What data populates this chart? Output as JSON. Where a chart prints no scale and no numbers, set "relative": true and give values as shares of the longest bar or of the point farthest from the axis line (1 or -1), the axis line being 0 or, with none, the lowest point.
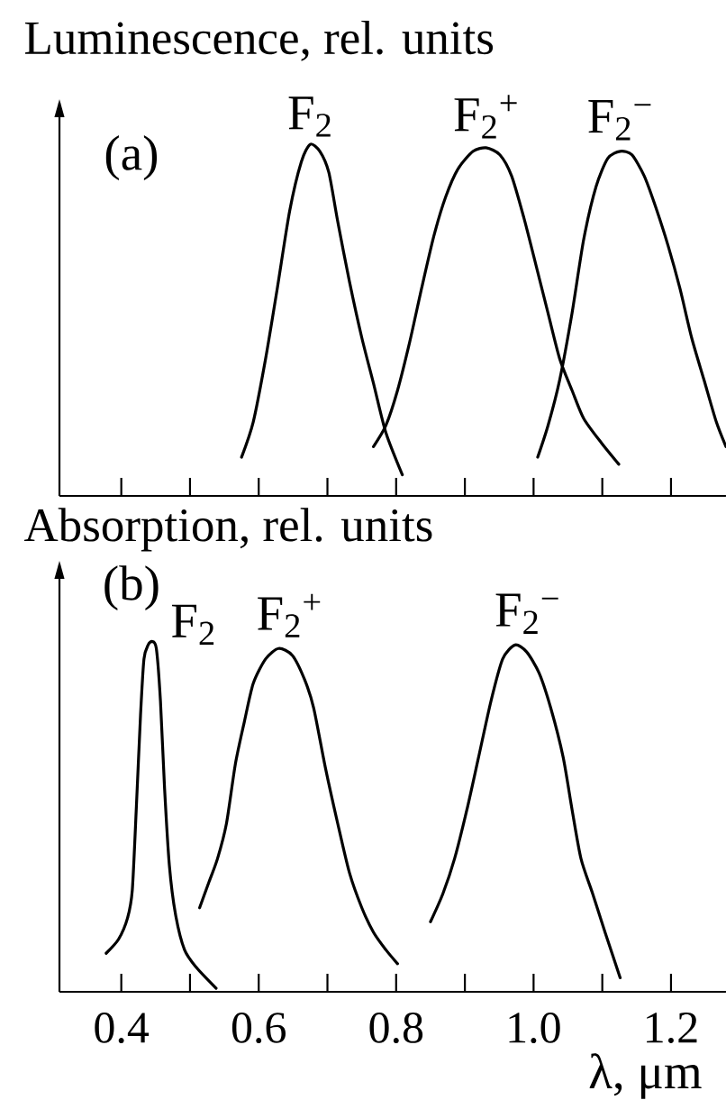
{
  "chart_data": [
    {
      "type": "line",
      "ylabel": "Luminescence, rel. units",
      "annotations": [
        "(a)"
      ],
      "relative": true,
      "xlim": [
        0.31,
        1.28
      ],
      "xticks": [
        0.4,
        0.5,
        0.6,
        0.7,
        0.8,
        0.9,
        1.0,
        1.1,
        1.2
      ],
      "tick_labels": false,
      "series": [
        {
          "name": "F$_{2}$",
          "color": "#000000",
          "x": [
            0.575,
            0.592,
            0.61,
            0.627,
            0.645,
            0.662,
            0.675,
            0.689,
            0.702,
            0.715,
            0.732,
            0.75,
            0.767,
            0.785,
            0.809
          ],
          "values": [
            0.11,
            0.21,
            0.39,
            0.59,
            0.81,
            0.95,
            1.0,
            0.98,
            0.92,
            0.78,
            0.61,
            0.45,
            0.32,
            0.18,
            0.06
          ]
        },
        {
          "name": "F$_{2}$$^{+}$",
          "color": "#000000",
          "x": [
            0.767,
            0.785,
            0.802,
            0.82,
            0.837,
            0.855,
            0.872,
            0.89,
            0.912,
            0.931,
            0.951,
            0.968,
            0.986,
            1.003,
            1.021,
            1.038,
            1.056,
            1.073,
            1.099,
            1.124
          ],
          "values": [
            0.14,
            0.2,
            0.3,
            0.44,
            0.59,
            0.74,
            0.85,
            0.93,
            0.98,
            0.99,
            0.97,
            0.91,
            0.79,
            0.66,
            0.52,
            0.39,
            0.3,
            0.22,
            0.15,
            0.09
          ]
        },
        {
          "name": "F$_{2}$$^{−}$",
          "color": "#000000",
          "x": [
            1.006,
            1.021,
            1.038,
            1.056,
            1.073,
            1.091,
            1.108,
            1.126,
            1.143,
            1.161,
            1.178,
            1.196,
            1.213,
            1.23,
            1.248,
            1.266,
            1.28
          ],
          "values": [
            0.11,
            0.2,
            0.33,
            0.52,
            0.73,
            0.88,
            0.96,
            0.98,
            0.97,
            0.91,
            0.82,
            0.71,
            0.59,
            0.45,
            0.33,
            0.21,
            0.14
          ]
        }
      ]
    },
    {
      "type": "line",
      "ylabel": "Absorption, rel. units",
      "xlabel": "λ, μm",
      "annotations": [
        "(b)"
      ],
      "relative": true,
      "xlim": [
        0.31,
        1.28
      ],
      "xticks": [
        {
          "value": 0.4,
          "label": "0.4"
        },
        {
          "value": 0.5,
          "label": null
        },
        {
          "value": 0.6,
          "label": "0.6"
        },
        {
          "value": 0.7,
          "label": null
        },
        {
          "value": 0.8,
          "label": "0.8"
        },
        {
          "value": 0.9,
          "label": null
        },
        {
          "value": 1.0,
          "label": "1.0"
        },
        {
          "value": 1.1,
          "label": null
        },
        {
          "value": 1.2,
          "label": "1.2"
        }
      ],
      "series": [
        {
          "name": "F$_{2}$",
          "color": "#000000",
          "x": [
            0.378,
            0.396,
            0.409,
            0.416,
            0.422,
            0.428,
            0.433,
            0.439,
            0.445,
            0.451,
            0.457,
            0.463,
            0.47,
            0.479,
            0.492,
            0.509,
            0.538
          ],
          "values": [
            0.11,
            0.15,
            0.21,
            0.29,
            0.53,
            0.79,
            0.95,
            0.99,
            1.0,
            0.98,
            0.83,
            0.58,
            0.36,
            0.22,
            0.12,
            0.07,
            0.01
          ]
        },
        {
          "name": "F$_{2}$$^{+}$",
          "color": "#000000",
          "x": [
            0.514,
            0.527,
            0.54,
            0.553,
            0.566,
            0.579,
            0.592,
            0.61,
            0.629,
            0.649,
            0.667,
            0.68,
            0.697,
            0.715,
            0.732,
            0.75,
            0.767,
            0.785,
            0.802
          ],
          "values": [
            0.24,
            0.31,
            0.38,
            0.48,
            0.65,
            0.77,
            0.88,
            0.95,
            0.98,
            0.96,
            0.89,
            0.81,
            0.64,
            0.48,
            0.34,
            0.24,
            0.17,
            0.12,
            0.08
          ]
        },
        {
          "name": "F$_{2}$$^{−}$",
          "color": "#000000",
          "x": [
            0.85,
            0.868,
            0.885,
            0.903,
            0.92,
            0.938,
            0.955,
            0.973,
            0.99,
            1.008,
            1.025,
            1.043,
            1.056,
            1.069,
            1.086,
            1.104,
            1.126
          ],
          "values": [
            0.2,
            0.28,
            0.38,
            0.52,
            0.67,
            0.83,
            0.95,
            0.99,
            0.97,
            0.91,
            0.81,
            0.67,
            0.52,
            0.38,
            0.28,
            0.17,
            0.04
          ]
        }
      ]
    }
  ]
}
